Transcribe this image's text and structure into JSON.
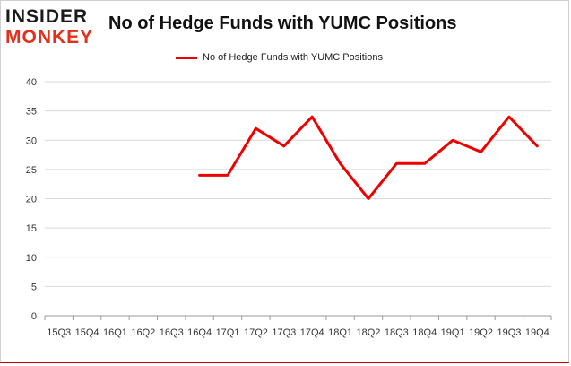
{
  "logo": {
    "line1": "INSIDER",
    "line2": "MONKEY"
  },
  "chart_data": {
    "type": "line",
    "title": "No of Hedge Funds with YUMC Positions",
    "xlabel": "",
    "ylabel": "",
    "categories": [
      "15Q3",
      "15Q4",
      "16Q1",
      "16Q2",
      "16Q3",
      "16Q4",
      "17Q1",
      "17Q2",
      "17Q3",
      "17Q4",
      "18Q1",
      "18Q2",
      "18Q3",
      "18Q4",
      "19Q1",
      "19Q2",
      "19Q3",
      "19Q4"
    ],
    "series": [
      {
        "name": "No of Hedge Funds with YUMC Positions",
        "color": "#ee0000",
        "values": [
          null,
          null,
          null,
          null,
          null,
          24,
          24,
          32,
          29,
          34,
          26,
          20,
          26,
          26,
          30,
          28,
          34,
          29
        ]
      }
    ],
    "ylim": [
      0,
      40
    ],
    "yticks": [
      0,
      5,
      10,
      15,
      20,
      25,
      30,
      35,
      40
    ],
    "grid": true,
    "legend": "top-center"
  }
}
